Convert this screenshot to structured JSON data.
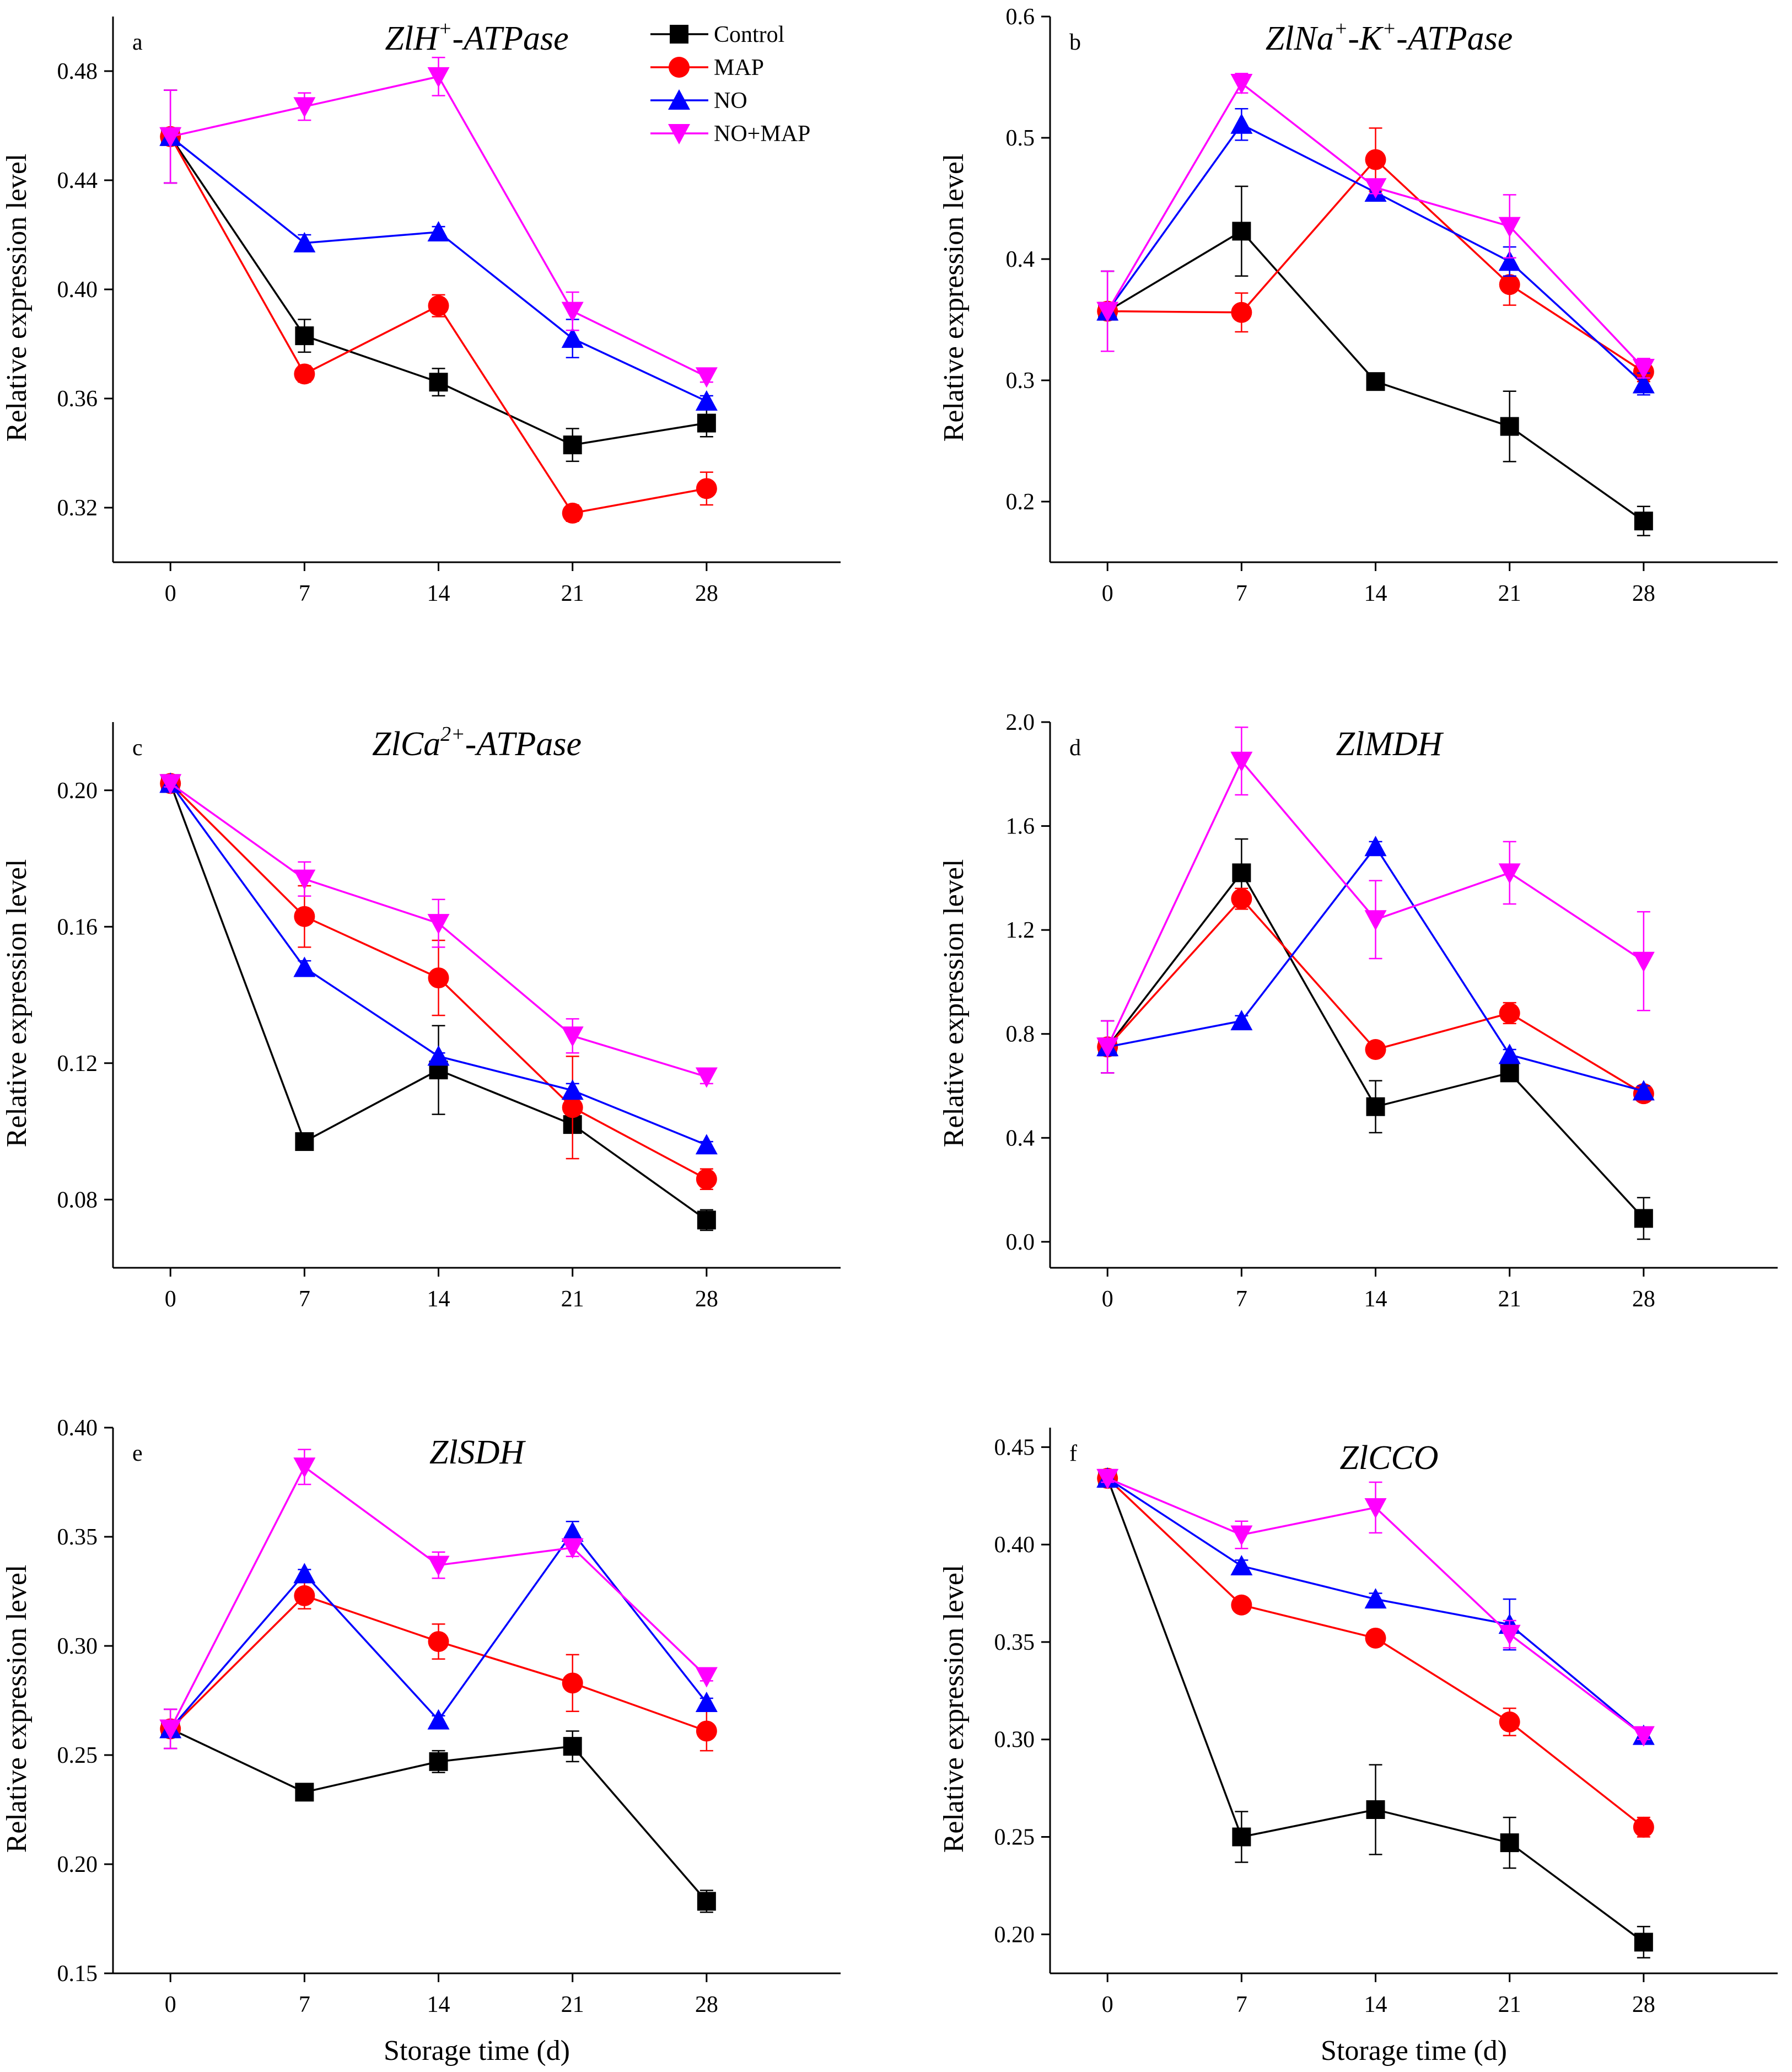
{
  "colors": {
    "Control": "#000000",
    "MAP": "#ff0000",
    "NO": "#0000ff",
    "NO+MAP": "#ff00ff"
  },
  "legend": {
    "entries": [
      "Control",
      "MAP",
      "NO",
      "NO+MAP"
    ]
  },
  "chart_data": [
    {
      "type": "line",
      "letter": "a",
      "title": {
        "prefix": "ZlH",
        "sup": "+",
        "suffix": "-ATPase"
      },
      "xlabel": "",
      "ylabel": "Relative expression level",
      "x": [
        0,
        7,
        14,
        21,
        28
      ],
      "xticks": [
        "0",
        "7",
        "14",
        "21",
        "28"
      ],
      "ylim": [
        0.3,
        0.5
      ],
      "yticks": [
        0.32,
        0.36,
        0.4,
        0.44,
        0.48
      ],
      "ytick_labels": [
        "0.32",
        "0.36",
        "0.40",
        "0.44",
        "0.48"
      ],
      "series": [
        {
          "name": "Control",
          "values": [
            0.456,
            0.383,
            0.366,
            0.343,
            0.351
          ],
          "errors": [
            0.017,
            0.006,
            0.005,
            0.006,
            0.005
          ]
        },
        {
          "name": "MAP",
          "values": [
            0.456,
            0.369,
            0.394,
            0.318,
            0.327
          ],
          "errors": [
            0.017,
            0.003,
            0.004,
            0.003,
            0.006
          ]
        },
        {
          "name": "NO",
          "values": [
            0.456,
            0.417,
            0.421,
            0.382,
            0.359
          ],
          "errors": [
            0.017,
            0.003,
            0.002,
            0.007,
            0.002
          ]
        },
        {
          "name": "NO+MAP",
          "values": [
            0.456,
            0.467,
            0.478,
            0.392,
            0.368
          ],
          "errors": [
            0.017,
            0.005,
            0.007,
            0.007,
            0.002
          ]
        }
      ]
    },
    {
      "type": "line",
      "letter": "b",
      "title": {
        "prefix": "ZlNa",
        "sup": "+",
        "mid": "-K",
        "sup2": "+",
        "suffix": "-ATPase"
      },
      "xlabel": "",
      "ylabel": "Relative expression level",
      "x": [
        0,
        7,
        14,
        21,
        28
      ],
      "xticks": [
        "0",
        "7",
        "14",
        "21",
        "28"
      ],
      "ylim": [
        0.15,
        0.6
      ],
      "yticks": [
        0.2,
        0.3,
        0.4,
        0.5,
        0.6
      ],
      "ytick_labels": [
        "0.2",
        "0.3",
        "0.4",
        "0.5",
        "0.6"
      ],
      "series": [
        {
          "name": "Control",
          "values": [
            0.357,
            0.423,
            0.299,
            0.262,
            0.184
          ],
          "errors": [
            0.033,
            0.037,
            0.003,
            0.029,
            0.012
          ]
        },
        {
          "name": "MAP",
          "values": [
            0.357,
            0.356,
            0.482,
            0.379,
            0.307
          ],
          "errors": [
            0.033,
            0.016,
            0.026,
            0.017,
            0.008
          ]
        },
        {
          "name": "NO",
          "values": [
            0.357,
            0.511,
            0.455,
            0.398,
            0.297
          ],
          "errors": [
            0.033,
            0.013,
            0.006,
            0.012,
            0.009
          ]
        },
        {
          "name": "NO+MAP",
          "values": [
            0.357,
            0.545,
            0.459,
            0.427,
            0.31
          ],
          "errors": [
            0.033,
            0.008,
            0.005,
            0.026,
            0.008
          ]
        }
      ]
    },
    {
      "type": "line",
      "letter": "c",
      "title": {
        "prefix": "ZlCa",
        "sup": "2+",
        "suffix": "-ATPase"
      },
      "xlabel": "",
      "ylabel": "Relative expression level",
      "x": [
        0,
        7,
        14,
        21,
        28
      ],
      "xticks": [
        "0",
        "7",
        "14",
        "21",
        "28"
      ],
      "ylim": [
        0.06,
        0.22
      ],
      "yticks": [
        0.08,
        0.12,
        0.16,
        0.2
      ],
      "ytick_labels": [
        "0.08",
        "0.12",
        "0.16",
        "0.20"
      ],
      "series": [
        {
          "name": "Control",
          "values": [
            0.202,
            0.097,
            0.118,
            0.102,
            0.074
          ],
          "errors": [
            0.001,
            0.001,
            0.013,
            0.002,
            0.003
          ]
        },
        {
          "name": "MAP",
          "values": [
            0.202,
            0.163,
            0.145,
            0.107,
            0.086
          ],
          "errors": [
            0.001,
            0.009,
            0.011,
            0.015,
            0.003
          ]
        },
        {
          "name": "NO",
          "values": [
            0.202,
            0.148,
            0.122,
            0.112,
            0.096
          ],
          "errors": [
            0.001,
            0.002,
            0.001,
            0.002,
            0.001
          ]
        },
        {
          "name": "NO+MAP",
          "values": [
            0.202,
            0.174,
            0.161,
            0.128,
            0.116
          ],
          "errors": [
            0.001,
            0.005,
            0.007,
            0.005,
            0.002
          ]
        }
      ]
    },
    {
      "type": "line",
      "letter": "d",
      "title": {
        "prefix": "ZlMDH",
        "sup": "",
        "suffix": ""
      },
      "xlabel": "",
      "ylabel": "Relative expression level",
      "x": [
        0,
        7,
        14,
        21,
        28
      ],
      "xticks": [
        "0",
        "7",
        "14",
        "21",
        "28"
      ],
      "ylim": [
        -0.1,
        2.0
      ],
      "yticks": [
        0.0,
        0.4,
        0.8,
        1.2,
        1.6,
        2.0
      ],
      "ytick_labels": [
        "0.0",
        "0.4",
        "0.8",
        "1.2",
        "1.6",
        "2.0"
      ],
      "series": [
        {
          "name": "Control",
          "values": [
            0.75,
            1.42,
            0.52,
            0.65,
            0.09
          ],
          "errors": [
            0.1,
            0.13,
            0.1,
            0.02,
            0.08
          ]
        },
        {
          "name": "MAP",
          "values": [
            0.75,
            1.32,
            0.74,
            0.88,
            0.57
          ],
          "errors": [
            0.1,
            0.04,
            0.02,
            0.04,
            0.02
          ]
        },
        {
          "name": "NO",
          "values": [
            0.75,
            0.85,
            1.52,
            0.72,
            0.58
          ],
          "errors": [
            0.1,
            0.02,
            0.02,
            0.02,
            0.02
          ]
        },
        {
          "name": "NO+MAP",
          "values": [
            0.75,
            1.85,
            1.24,
            1.42,
            1.08
          ],
          "errors": [
            0.1,
            0.13,
            0.15,
            0.12,
            0.19
          ]
        }
      ]
    },
    {
      "type": "line",
      "letter": "e",
      "title": {
        "prefix": "ZlSDH",
        "sup": "",
        "suffix": ""
      },
      "xlabel": "Storage time (d)",
      "ylabel": "Relative expression level",
      "x": [
        0,
        7,
        14,
        21,
        28
      ],
      "xticks": [
        "0",
        "7",
        "14",
        "21",
        "28"
      ],
      "ylim": [
        0.15,
        0.4
      ],
      "yticks": [
        0.15,
        0.2,
        0.25,
        0.3,
        0.35,
        0.4
      ],
      "ytick_labels": [
        "0.15",
        "0.20",
        "0.25",
        "0.30",
        "0.35",
        "0.40"
      ],
      "series": [
        {
          "name": "Control",
          "values": [
            0.262,
            0.233,
            0.247,
            0.254,
            0.183
          ],
          "errors": [
            0.009,
            0.002,
            0.005,
            0.007,
            0.005
          ]
        },
        {
          "name": "MAP",
          "values": [
            0.262,
            0.323,
            0.302,
            0.283,
            0.261
          ],
          "errors": [
            0.009,
            0.006,
            0.008,
            0.013,
            0.009
          ]
        },
        {
          "name": "NO",
          "values": [
            0.262,
            0.333,
            0.266,
            0.352,
            0.274
          ],
          "errors": [
            0.009,
            0.002,
            0.002,
            0.005,
            0.002
          ]
        },
        {
          "name": "NO+MAP",
          "values": [
            0.262,
            0.382,
            0.337,
            0.345,
            0.286
          ],
          "errors": [
            0.009,
            0.008,
            0.006,
            0.004,
            0.002
          ]
        }
      ]
    },
    {
      "type": "line",
      "letter": "f",
      "title": {
        "prefix": "ZlCCO",
        "sup": "",
        "suffix": ""
      },
      "xlabel": "Storage time (d)",
      "ylabel": "Relative expression level",
      "x": [
        0,
        7,
        14,
        21,
        28
      ],
      "xticks": [
        "0",
        "7",
        "14",
        "21",
        "28"
      ],
      "ylim": [
        0.18,
        0.46
      ],
      "yticks": [
        0.2,
        0.25,
        0.3,
        0.35,
        0.4,
        0.45
      ],
      "ytick_labels": [
        "0.20",
        "0.25",
        "0.30",
        "0.35",
        "0.40",
        "0.45"
      ],
      "series": [
        {
          "name": "Control",
          "values": [
            0.434,
            0.25,
            0.264,
            0.247,
            0.196
          ],
          "errors": [
            0.002,
            0.013,
            0.023,
            0.013,
            0.008
          ]
        },
        {
          "name": "MAP",
          "values": [
            0.434,
            0.369,
            0.352,
            0.309,
            0.255
          ],
          "errors": [
            0.002,
            0.003,
            0.002,
            0.007,
            0.005
          ]
        },
        {
          "name": "NO",
          "values": [
            0.434,
            0.389,
            0.372,
            0.359,
            0.302
          ],
          "errors": [
            0.002,
            0.003,
            0.003,
            0.013,
            0.002
          ]
        },
        {
          "name": "NO+MAP",
          "values": [
            0.434,
            0.405,
            0.419,
            0.354,
            0.302
          ],
          "errors": [
            0.002,
            0.007,
            0.013,
            0.007,
            0.002
          ]
        }
      ]
    }
  ]
}
